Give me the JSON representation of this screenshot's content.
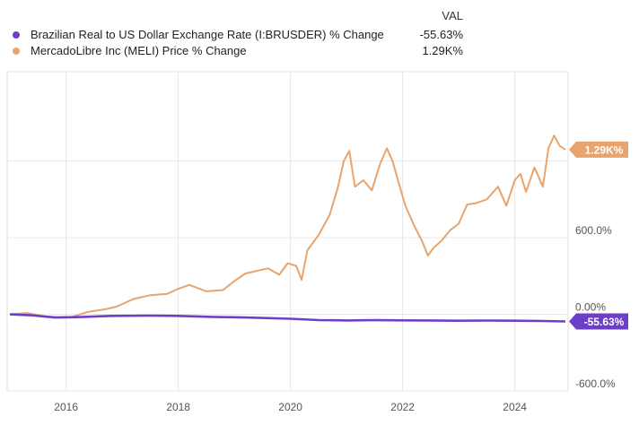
{
  "legend": {
    "header": "VAL",
    "items": [
      {
        "name": "Brazilian Real to US Dollar Exchange Rate (I:BRUSDER) % Change",
        "value": "-55.63%",
        "color": "#6c3fc7"
      },
      {
        "name": "MercadoLibre Inc (MELI) Price % Change",
        "value": "1.29K%",
        "color": "#e8a46c"
      }
    ]
  },
  "chart_data": {
    "type": "line",
    "xlim": [
      2014.95,
      2024.95
    ],
    "ylim": [
      -600,
      1900
    ],
    "x_ticks": [
      2016,
      2018,
      2020,
      2022,
      2024
    ],
    "x_tick_labels": [
      "2016",
      "2018",
      "2020",
      "2022",
      "2024"
    ],
    "y_ticks": [
      -600,
      0,
      600,
      1200
    ],
    "y_tick_labels": [
      "-600.0%",
      "0.00%",
      "600.0%",
      "1.20K%"
    ],
    "grid": true,
    "series": [
      {
        "name": "MercadoLibre Inc (MELI) Price % Change",
        "color": "#e8a46c",
        "end_label": "1.29K%",
        "x": [
          2015.0,
          2015.3,
          2015.6,
          2015.85,
          2016.1,
          2016.4,
          2016.7,
          2016.9,
          2017.2,
          2017.5,
          2017.8,
          2018.0,
          2018.2,
          2018.5,
          2018.8,
          2019.0,
          2019.2,
          2019.4,
          2019.6,
          2019.8,
          2019.95,
          2020.1,
          2020.2,
          2020.3,
          2020.5,
          2020.7,
          2020.85,
          2020.95,
          2021.05,
          2021.15,
          2021.3,
          2021.45,
          2021.6,
          2021.72,
          2021.82,
          2021.95,
          2022.05,
          2022.2,
          2022.35,
          2022.45,
          2022.55,
          2022.7,
          2022.85,
          2023.0,
          2023.15,
          2023.3,
          2023.5,
          2023.7,
          2023.85,
          2024.0,
          2024.1,
          2024.2,
          2024.35,
          2024.5,
          2024.6,
          2024.7,
          2024.8,
          2024.9
        ],
        "y": [
          0,
          10,
          -15,
          -25,
          -20,
          20,
          40,
          60,
          120,
          150,
          160,
          200,
          230,
          180,
          190,
          260,
          320,
          340,
          360,
          310,
          400,
          380,
          270,
          500,
          620,
          780,
          1000,
          1200,
          1280,
          1000,
          1050,
          970,
          1180,
          1300,
          1200,
          1000,
          850,
          700,
          570,
          460,
          520,
          580,
          660,
          710,
          860,
          870,
          900,
          1000,
          850,
          1050,
          1100,
          960,
          1150,
          1000,
          1300,
          1400,
          1320,
          1290
        ]
      },
      {
        "name": "Brazilian Real to US Dollar Exchange Rate (I:BRUSDER) % Change",
        "color": "#6c3fc7",
        "end_label": "-55.63%",
        "x": [
          2015.0,
          2015.4,
          2015.8,
          2016.2,
          2016.8,
          2017.5,
          2018.0,
          2018.6,
          2019.2,
          2020.0,
          2020.5,
          2021.0,
          2021.5,
          2022.0,
          2022.5,
          2023.0,
          2023.5,
          2024.0,
          2024.5,
          2024.9
        ],
        "y": [
          0,
          -8,
          -25,
          -22,
          -12,
          -10,
          -12,
          -20,
          -25,
          -35,
          -45,
          -48,
          -45,
          -47,
          -48,
          -50,
          -49,
          -50,
          -52,
          -55.63
        ]
      }
    ]
  }
}
